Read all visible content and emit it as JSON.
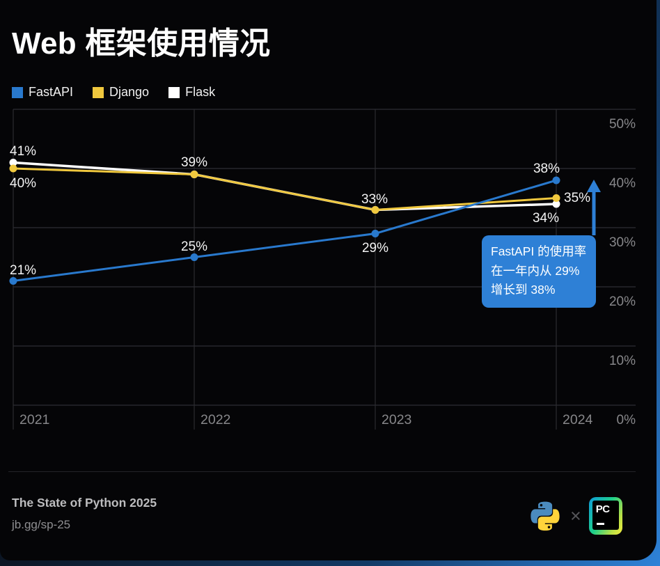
{
  "title": "Web 框架使用情况",
  "legend": [
    {
      "label": "FastAPI",
      "color": "#2979CD"
    },
    {
      "label": "Django",
      "color": "#F0C83E"
    },
    {
      "label": "Flask",
      "color": "#FFFFFF"
    }
  ],
  "chart_data": {
    "type": "line",
    "x_ticks": [
      "2021",
      "2022",
      "2023",
      "2024"
    ],
    "y_ticks": [
      "0%",
      "10%",
      "20%",
      "30%",
      "40%",
      "50%"
    ],
    "ylim": [
      0,
      50
    ],
    "grid": true,
    "legend_position": "top-left",
    "series": [
      {
        "name": "Flask",
        "color": "#FFFFFF",
        "values": [
          41,
          39,
          33,
          34
        ]
      },
      {
        "name": "Django",
        "color": "#F0C83E",
        "values": [
          40,
          39,
          33,
          35
        ]
      },
      {
        "name": "FastAPI",
        "color": "#2979CD",
        "values": [
          21,
          25,
          29,
          38
        ]
      }
    ],
    "point_labels": [
      {
        "series": "Flask",
        "index": 0,
        "text": "41%"
      },
      {
        "series": "Django",
        "index": 0,
        "text": "40%"
      },
      {
        "series": "FastAPI",
        "index": 0,
        "text": "21%"
      },
      {
        "series": "Django",
        "index": 1,
        "text": "39%"
      },
      {
        "series": "FastAPI",
        "index": 1,
        "text": "25%"
      },
      {
        "series": "Django",
        "index": 2,
        "text": "33%"
      },
      {
        "series": "FastAPI",
        "index": 2,
        "text": "29%"
      },
      {
        "series": "FastAPI",
        "index": 3,
        "text": "38%"
      },
      {
        "series": "Django",
        "index": 3,
        "text": "35%"
      },
      {
        "series": "Flask",
        "index": 3,
        "text": "34%"
      }
    ],
    "annotation": {
      "text": "FastAPI 的使用率\n在一年内从 29%\n增长到 38%",
      "color": "#2E80D6"
    }
  },
  "footer": {
    "title": "The State of Python 2025",
    "url": "jb.gg/sp-25",
    "multiply_symbol": "×",
    "pycharm_label": "PC"
  }
}
